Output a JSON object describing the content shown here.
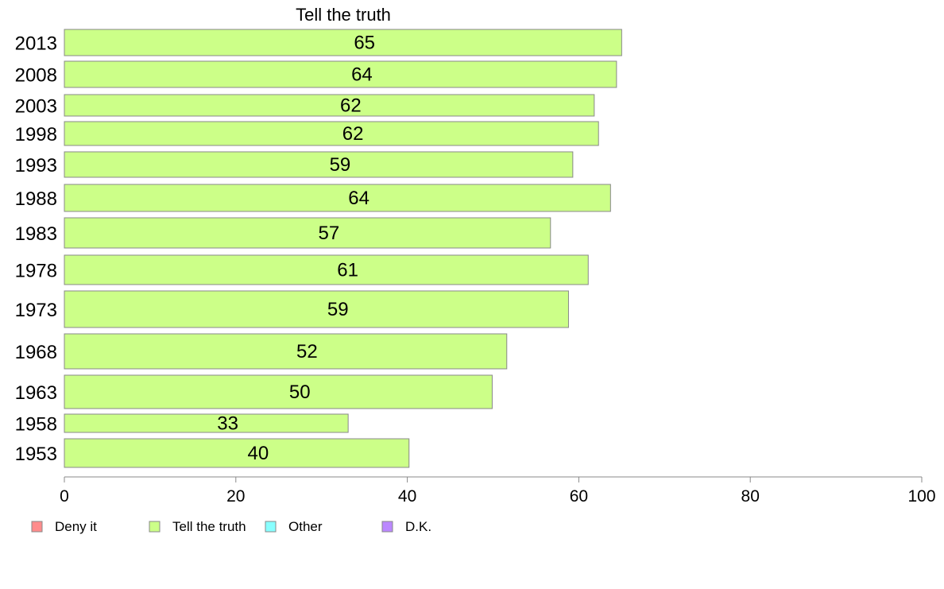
{
  "chart_data": {
    "type": "bar",
    "orientation": "horizontal",
    "title": "Tell the truth",
    "xlabel": "",
    "ylabel": "",
    "categories": [
      "2013",
      "2008",
      "2003",
      "1998",
      "1993",
      "1988",
      "1983",
      "1978",
      "1973",
      "1968",
      "1963",
      "1958",
      "1953"
    ],
    "series": [
      {
        "name": "Tell the truth",
        "values": [
          65,
          64.4,
          61.8,
          62.3,
          59.3,
          63.7,
          56.7,
          61.1,
          58.8,
          51.6,
          49.9,
          33.1,
          40.2
        ],
        "labels": [
          "65",
          "64",
          "62",
          "62",
          "59",
          "64",
          "57",
          "61",
          "59",
          "52",
          "50",
          "33",
          "40"
        ],
        "color": "#CCFF88"
      }
    ],
    "xlim": [
      0,
      100
    ],
    "xticks": [
      "0",
      "20",
      "40",
      "60",
      "80",
      "100"
    ],
    "grid": false,
    "legend": {
      "position": "bottom-left",
      "entries": [
        {
          "label": "Deny it",
          "color": "#FF8C8C"
        },
        {
          "label": "Tell the truth",
          "color": "#CCFF88"
        },
        {
          "label": "Other",
          "color": "#88FFFF"
        },
        {
          "label": "D.K.",
          "color": "#BB88FF"
        }
      ]
    },
    "colors": {
      "bar_stroke": "#888888",
      "axis": "#888888",
      "text": "#000000"
    }
  }
}
